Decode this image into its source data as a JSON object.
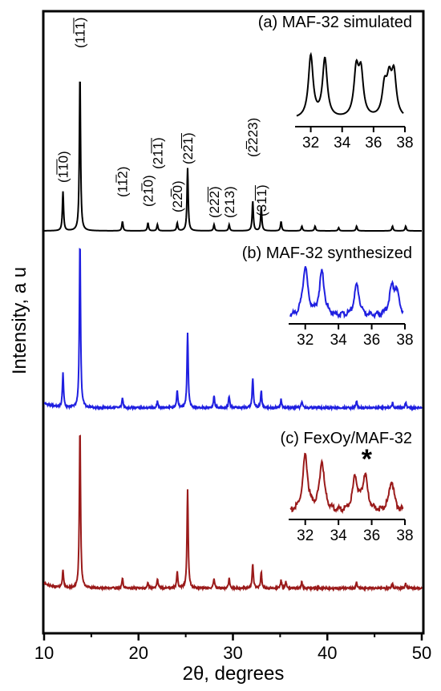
{
  "chart_data": {
    "type": "line",
    "xlabel": "2θ, degrees",
    "ylabel": "Intensity, a u",
    "xlim": [
      10,
      50
    ],
    "x_ticks": [
      10,
      20,
      30,
      40,
      50
    ],
    "grid": false,
    "series": [
      {
        "name": "(a) MAF-32 simulated",
        "color": "#000000",
        "peaks": [
          {
            "x": 12.0,
            "h": 0.25
          },
          {
            "x": 13.8,
            "h": 1.0
          },
          {
            "x": 18.3,
            "h": 0.06
          },
          {
            "x": 21.0,
            "h": 0.05
          },
          {
            "x": 22.0,
            "h": 0.04
          },
          {
            "x": 24.1,
            "h": 0.05
          },
          {
            "x": 25.2,
            "h": 0.4
          },
          {
            "x": 28.0,
            "h": 0.04
          },
          {
            "x": 29.6,
            "h": 0.04
          },
          {
            "x": 32.1,
            "h": 0.19
          },
          {
            "x": 33.0,
            "h": 0.15
          },
          {
            "x": 35.1,
            "h": 0.06
          },
          {
            "x": 37.3,
            "h": 0.03
          },
          {
            "x": 38.7,
            "h": 0.03
          },
          {
            "x": 41.2,
            "h": 0.02
          },
          {
            "x": 43.1,
            "h": 0.03
          },
          {
            "x": 46.9,
            "h": 0.03
          },
          {
            "x": 48.3,
            "h": 0.03
          }
        ],
        "inset": {
          "xlim": [
            31,
            38
          ],
          "x_ticks": [
            32,
            34,
            36,
            38
          ],
          "peaks": [
            {
              "x": 32.0,
              "h": 0.9
            },
            {
              "x": 32.9,
              "h": 0.85
            },
            {
              "x": 34.9,
              "h": 0.66
            },
            {
              "x": 35.2,
              "h": 0.62
            },
            {
              "x": 36.7,
              "h": 0.42
            },
            {
              "x": 37.0,
              "h": 0.48
            },
            {
              "x": 37.3,
              "h": 0.6
            }
          ]
        }
      },
      {
        "name": "(b) MAF-32 synthesized",
        "color": "#1f1fe0",
        "peaks": [
          {
            "x": 12.0,
            "h": 0.2
          },
          {
            "x": 13.8,
            "h": 1.0
          },
          {
            "x": 18.3,
            "h": 0.06
          },
          {
            "x": 22.0,
            "h": 0.04
          },
          {
            "x": 24.1,
            "h": 0.1
          },
          {
            "x": 25.2,
            "h": 0.45
          },
          {
            "x": 28.0,
            "h": 0.07
          },
          {
            "x": 29.6,
            "h": 0.07
          },
          {
            "x": 32.1,
            "h": 0.18
          },
          {
            "x": 33.0,
            "h": 0.1
          },
          {
            "x": 35.1,
            "h": 0.05
          },
          {
            "x": 37.3,
            "h": 0.04
          },
          {
            "x": 43.1,
            "h": 0.04
          },
          {
            "x": 46.9,
            "h": 0.03
          },
          {
            "x": 48.3,
            "h": 0.03
          }
        ],
        "inset": {
          "xlim": [
            31,
            38
          ],
          "x_ticks": [
            32,
            34,
            36,
            38
          ],
          "peaks": [
            {
              "x": 32.0,
              "h": 0.9
            },
            {
              "x": 33.0,
              "h": 0.8
            },
            {
              "x": 35.1,
              "h": 0.58
            },
            {
              "x": 37.2,
              "h": 0.48
            },
            {
              "x": 37.5,
              "h": 0.4
            }
          ]
        }
      },
      {
        "name": "(c) FexOy/MAF-32",
        "color": "#9a1a1a",
        "peaks": [
          {
            "x": 12.0,
            "h": 0.11
          },
          {
            "x": 13.8,
            "h": 1.0
          },
          {
            "x": 18.3,
            "h": 0.06
          },
          {
            "x": 21.0,
            "h": 0.03
          },
          {
            "x": 22.0,
            "h": 0.06
          },
          {
            "x": 24.1,
            "h": 0.1
          },
          {
            "x": 25.2,
            "h": 0.61
          },
          {
            "x": 28.0,
            "h": 0.06
          },
          {
            "x": 29.6,
            "h": 0.06
          },
          {
            "x": 32.1,
            "h": 0.15
          },
          {
            "x": 33.0,
            "h": 0.1
          },
          {
            "x": 35.1,
            "h": 0.05
          },
          {
            "x": 35.6,
            "h": 0.04
          },
          {
            "x": 37.3,
            "h": 0.04
          },
          {
            "x": 43.1,
            "h": 0.04
          },
          {
            "x": 46.9,
            "h": 0.03
          },
          {
            "x": 48.3,
            "h": 0.03
          }
        ],
        "inset": {
          "xlim": [
            31,
            38
          ],
          "x_ticks": [
            32,
            34,
            36,
            38
          ],
          "peaks": [
            {
              "x": 32.0,
              "h": 0.9
            },
            {
              "x": 33.0,
              "h": 0.8
            },
            {
              "x": 35.0,
              "h": 0.55
            },
            {
              "x": 35.6,
              "h": 0.58
            },
            {
              "x": 37.2,
              "h": 0.5
            }
          ],
          "annotation": "*"
        }
      }
    ],
    "reflections": [
      {
        "label": "(1̅1̅0)",
        "x": 12.0,
        "series": 0
      },
      {
        "label": "(11̅1̅)",
        "x": 13.8,
        "series": 0
      },
      {
        "label": "(11̅2)",
        "x": 18.3,
        "series": 0
      },
      {
        "label": "(21̅0)",
        "x": 21.0,
        "series": 0
      },
      {
        "label": "(21̅1̅)",
        "x": 22.0,
        "series": 0
      },
      {
        "label": "(22̅0)",
        "x": 24.1,
        "series": 0
      },
      {
        "label": "(22̅1̅)",
        "x": 25.2,
        "series": 0
      },
      {
        "label": "(22̅2̅)",
        "x": 28.0,
        "series": 0
      },
      {
        "label": "(213)",
        "x": 29.6,
        "series": 0
      },
      {
        "label": "(2̅̅223)",
        "x": 32.1,
        "series": 0
      },
      {
        "label": "(31̅1̅)",
        "x": 33.0,
        "series": 0
      }
    ]
  }
}
